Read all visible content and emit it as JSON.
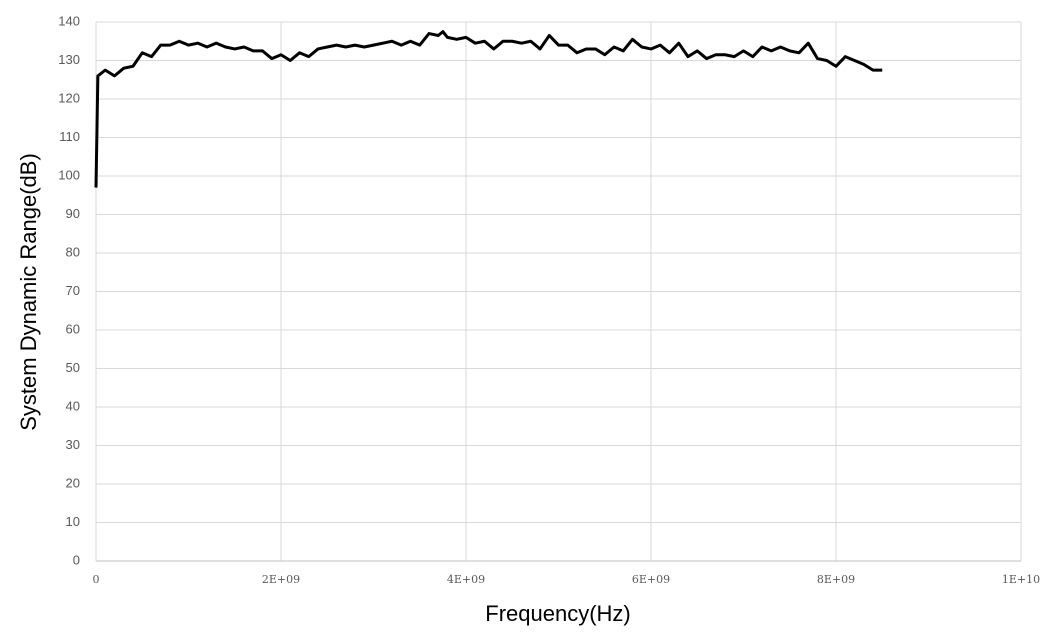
{
  "chart_data": {
    "type": "line",
    "xlabel": "Frequency(Hz)",
    "ylabel": "System Dynamic Range(dB)",
    "x": [
      0,
      20000000,
      100000000,
      200000000,
      300000000,
      400000000,
      500000000,
      600000000,
      700000000,
      800000000,
      900000000,
      1000000000,
      1100000000,
      1200000000,
      1300000000,
      1400000000,
      1500000000,
      1600000000,
      1700000000,
      1800000000,
      1900000000,
      2000000000,
      2100000000,
      2200000000,
      2300000000,
      2400000000,
      2500000000,
      2600000000,
      2700000000,
      2800000000,
      2900000000,
      3000000000,
      3100000000,
      3200000000,
      3300000000,
      3400000000,
      3500000000,
      3600000000,
      3700000000,
      3750000000,
      3800000000,
      3900000000,
      4000000000,
      4100000000,
      4200000000,
      4300000000,
      4400000000,
      4500000000,
      4600000000,
      4700000000,
      4800000000,
      4900000000,
      5000000000,
      5100000000,
      5200000000,
      5300000000,
      5400000000,
      5500000000,
      5600000000,
      5700000000,
      5800000000,
      5900000000,
      6000000000,
      6100000000,
      6200000000,
      6300000000,
      6400000000,
      6500000000,
      6600000000,
      6700000000,
      6800000000,
      6900000000,
      7000000000,
      7100000000,
      7200000000,
      7300000000,
      7400000000,
      7500000000,
      7600000000,
      7700000000,
      7800000000,
      7900000000,
      8000000000,
      8100000000,
      8200000000,
      8300000000,
      8400000000,
      8500000000
    ],
    "series": [
      {
        "color": "#000000",
        "values": [
          97,
          126,
          127.5,
          126,
          128,
          128.5,
          132,
          131,
          134,
          134,
          135,
          134,
          134.5,
          133.5,
          134.5,
          133.5,
          133,
          133.5,
          132.5,
          132.5,
          130.5,
          131.5,
          130,
          132,
          131,
          133,
          133.5,
          134,
          133.5,
          134,
          133.5,
          134,
          134.5,
          135,
          134,
          135,
          134,
          137,
          136.5,
          137.5,
          136,
          135.5,
          136,
          134.5,
          135,
          133,
          135,
          135,
          134.5,
          135,
          133,
          136.5,
          134,
          134,
          132,
          133,
          133,
          131.5,
          133.5,
          132.5,
          135.5,
          133.5,
          133,
          134,
          132,
          134.5,
          131,
          132.5,
          130.5,
          131.5,
          131.5,
          131,
          132.5,
          131,
          133.5,
          132.5,
          133.5,
          132.5,
          132,
          134.5,
          130.5,
          130,
          128.5,
          131,
          130,
          129,
          127.5,
          127.5
        ]
      }
    ],
    "xlim": [
      0,
      10000000000
    ],
    "xticks": [
      0,
      {
        "value": 2000000000,
        "label": "2E+09"
      },
      {
        "value": 4000000000,
        "label": "4E+09"
      },
      {
        "value": 6000000000,
        "label": "6E+09"
      },
      {
        "value": 8000000000,
        "label": "8E+09"
      },
      {
        "value": 10000000000,
        "label": "1E+10"
      }
    ],
    "ylim": [
      0,
      140
    ],
    "yticks": [
      0,
      10,
      20,
      30,
      40,
      50,
      60,
      70,
      80,
      90,
      100,
      110,
      120,
      130,
      140
    ],
    "grid": true
  }
}
